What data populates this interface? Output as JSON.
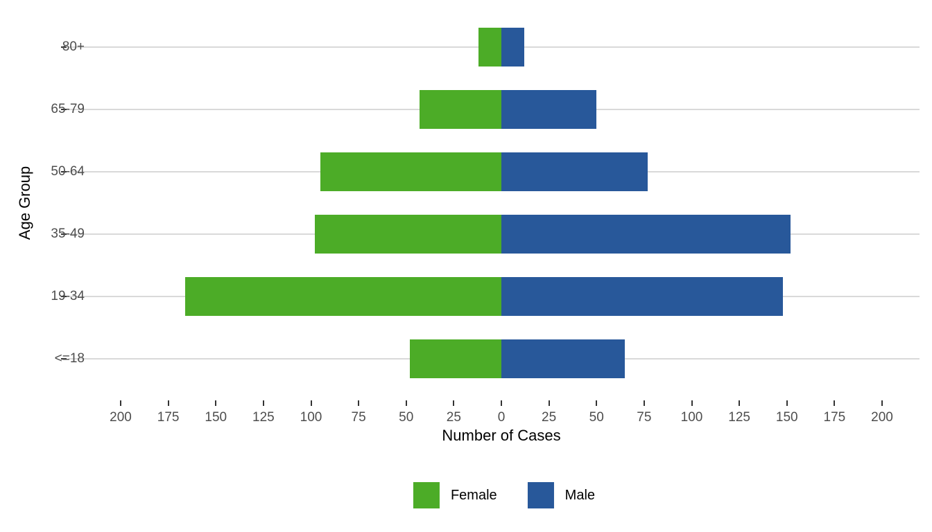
{
  "chart_data": {
    "type": "bar",
    "variant": "diverging horizontal bars (population pyramid)",
    "title": "",
    "xlabel": "Number of Cases",
    "ylabel": "Age Group",
    "categories_top_to_bottom": [
      "80+",
      "65-79",
      "50-64",
      "35-49",
      "19-34",
      "<=18"
    ],
    "series": [
      {
        "name": "Female",
        "direction": "left",
        "color": "#4cac27",
        "values": [
          12,
          43,
          95,
          98,
          166,
          48
        ]
      },
      {
        "name": "Male",
        "direction": "right",
        "color": "#28589a",
        "values": [
          12,
          50,
          77,
          152,
          148,
          65
        ]
      }
    ],
    "xlim": [
      -200,
      200
    ],
    "x_tick_values": [
      -200,
      -175,
      -150,
      -125,
      -100,
      -75,
      -50,
      -25,
      0,
      25,
      50,
      75,
      100,
      125,
      150,
      175,
      200
    ],
    "x_tick_labels": [
      "200",
      "175",
      "150",
      "125",
      "100",
      "75",
      "50",
      "25",
      "0",
      "25",
      "50",
      "75",
      "100",
      "125",
      "150",
      "175",
      "200"
    ],
    "grid": "horizontal major gridlines only, no axis lines",
    "colors": {
      "gridline": "#d9d9d9",
      "tick_mark": "#333333",
      "tick_label": "#4d4d4d",
      "axis_title": "#000000",
      "background": "#ffffff"
    },
    "legend": {
      "position": "bottom",
      "entries": [
        {
          "label": "Female",
          "color": "#4cac27"
        },
        {
          "label": "Male",
          "color": "#28589a"
        }
      ]
    }
  }
}
